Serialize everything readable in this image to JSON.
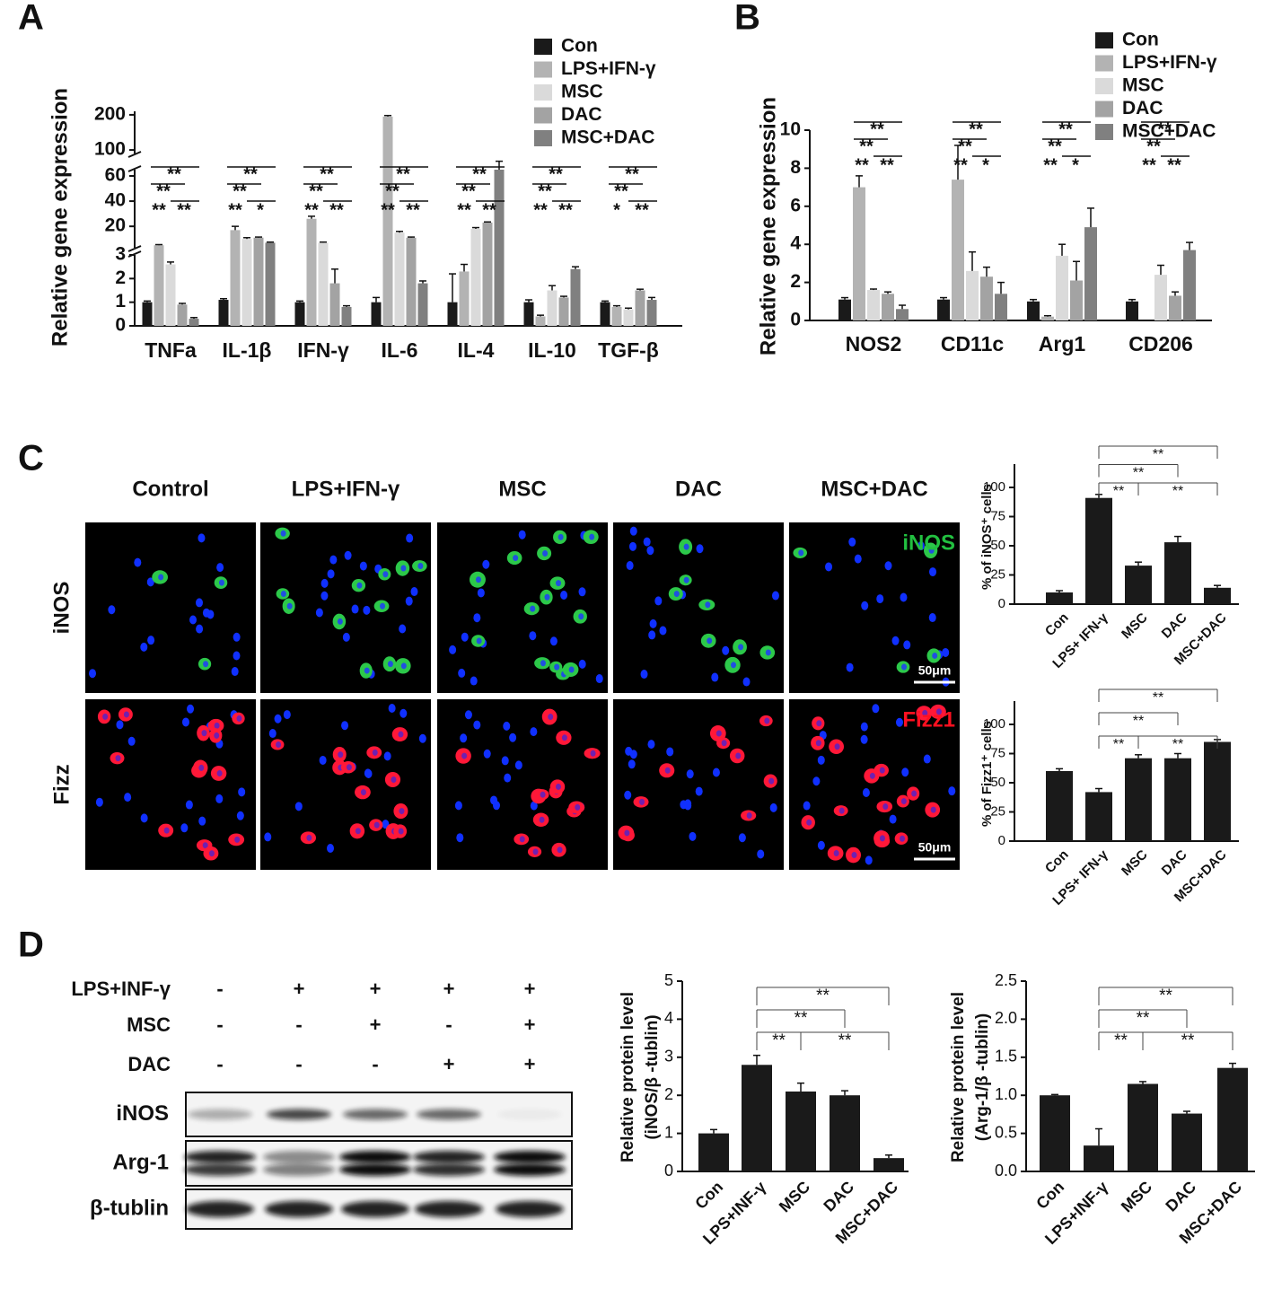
{
  "panel_labels": [
    "A",
    "B",
    "C",
    "D"
  ],
  "chart_data": [
    {
      "type": "bar",
      "y_label": "Relative gene expression",
      "categories": [
        "TNFa",
        "IL-1β",
        "IFN-γ",
        "IL-6",
        "IL-4",
        "IL-10",
        "TGF-β"
      ],
      "series": [
        {
          "name": "Con",
          "color": "#1a1a1a",
          "values": [
            1,
            1.1,
            1,
            1,
            1,
            1,
            1
          ],
          "errors": [
            0.05,
            0.05,
            0.05,
            0.2,
            1.2,
            0.1,
            0.05
          ]
        },
        {
          "name": "LPS+IFN-γ",
          "color": "#b3b3b3",
          "values": [
            5,
            17,
            26,
            195,
            2.3,
            0.4,
            0.8
          ],
          "errors": [
            0.5,
            3,
            2,
            3,
            0.3,
            0.05,
            0.05
          ]
        },
        {
          "name": "MSC",
          "color": "#dadada",
          "values": [
            2.6,
            10,
            7,
            15,
            18,
            1.5,
            0.7
          ],
          "errors": [
            0.1,
            1,
            0.5,
            1,
            1,
            0.2,
            0.05
          ]
        },
        {
          "name": "DAC",
          "color": "#a3a3a3",
          "values": [
            0.9,
            11,
            1.8,
            11,
            23,
            1.2,
            1.5
          ],
          "errors": [
            0.05,
            0.5,
            0.6,
            0.5,
            0.5,
            0.05,
            0.05
          ]
        },
        {
          "name": "MSC+DAC",
          "color": "#808080",
          "values": [
            0.3,
            7,
            0.8,
            1.8,
            65,
            2.4,
            1.1
          ],
          "errors": [
            0.05,
            0.5,
            0.05,
            0.1,
            3,
            0.1,
            0.1
          ]
        }
      ],
      "ylim": [
        0,
        210
      ],
      "y_segments": [
        [
          0,
          3
        ],
        [
          3,
          65
        ],
        [
          90,
          210
        ]
      ],
      "yticks": [
        0,
        1,
        2,
        3,
        20,
        40,
        60,
        100,
        200
      ],
      "significance": [
        [
          "**",
          "**",
          "**",
          "**"
        ],
        [
          "**",
          "**",
          "**",
          "*"
        ],
        [
          "**",
          "**",
          "**",
          "**"
        ],
        [
          "**",
          "**",
          "**",
          "**"
        ],
        [
          "**",
          "**",
          "**",
          "**"
        ],
        [
          "**",
          "**",
          "**",
          "**"
        ],
        [
          "**",
          "**",
          "*",
          "**"
        ]
      ]
    },
    {
      "type": "bar",
      "y_label": "Relative gene expression",
      "categories": [
        "NOS2",
        "CD11c",
        "Arg1",
        "CD206"
      ],
      "series": [
        {
          "name": "Con",
          "color": "#1a1a1a",
          "values": [
            1.1,
            1.1,
            1,
            1
          ],
          "errors": [
            0.1,
            0.1,
            0.1,
            0.1
          ]
        },
        {
          "name": "LPS+IFN-γ",
          "color": "#b3b3b3",
          "values": [
            7,
            7.4,
            0.2,
            0
          ],
          "errors": [
            0.6,
            1.8,
            0.05,
            0
          ]
        },
        {
          "name": "MSC",
          "color": "#dadada",
          "values": [
            1.6,
            2.6,
            3.4,
            2.4
          ],
          "errors": [
            0.05,
            1,
            0.6,
            0.5
          ]
        },
        {
          "name": "DAC",
          "color": "#a3a3a3",
          "values": [
            1.4,
            2.3,
            2.1,
            1.3
          ],
          "errors": [
            0.1,
            0.5,
            1,
            0.2
          ]
        },
        {
          "name": "MSC+DAC",
          "color": "#808080",
          "values": [
            0.6,
            1.4,
            4.9,
            3.7
          ],
          "errors": [
            0.2,
            0.6,
            1,
            0.4
          ]
        }
      ],
      "ylim": [
        0,
        10
      ],
      "yticks": [
        0,
        2,
        4,
        6,
        8,
        10
      ],
      "significance": [
        [
          "**",
          "**",
          "**",
          "**"
        ],
        [
          "**",
          "**",
          "**",
          "*"
        ],
        [
          "**",
          "**",
          "**",
          "*"
        ],
        [
          "**",
          "**",
          "**",
          "**"
        ]
      ]
    },
    {
      "type": "bar",
      "y_label": "% of iNOS⁺ cells",
      "categories": [
        "Con",
        "LPS+ IFN-γ",
        "MSC",
        "DAC",
        "MSC+DAC"
      ],
      "values": [
        10,
        91,
        33,
        53,
        14
      ],
      "errors": [
        1.5,
        3,
        3,
        5,
        2
      ],
      "color": "#1a1a1a",
      "ylim": [
        0,
        120
      ],
      "yticks": [
        0,
        25,
        50,
        75,
        100
      ],
      "brackets": [
        {
          "from": 1,
          "to": 4,
          "label": "**"
        },
        {
          "from": 1,
          "to": 3,
          "label": "**"
        },
        {
          "from": 1,
          "to": 2,
          "label": "**"
        },
        {
          "from": 2,
          "to": 4,
          "label": "**"
        }
      ]
    },
    {
      "type": "bar",
      "y_label": "% of Fizz1⁺ cells",
      "categories": [
        "Con",
        "LPS+ IFN-γ",
        "MSC",
        "DAC",
        "MSC+DAC"
      ],
      "values": [
        60,
        42,
        71,
        71,
        85
      ],
      "errors": [
        2,
        3,
        3,
        4,
        2
      ],
      "color": "#1a1a1a",
      "ylim": [
        0,
        120
      ],
      "yticks": [
        0,
        25,
        50,
        75,
        100
      ],
      "brackets": [
        {
          "from": 1,
          "to": 4,
          "label": "**"
        },
        {
          "from": 1,
          "to": 3,
          "label": "**"
        },
        {
          "from": 1,
          "to": 2,
          "label": "**"
        },
        {
          "from": 2,
          "to": 4,
          "label": "**"
        }
      ]
    },
    {
      "type": "bar",
      "y_label": [
        "Relative protein level",
        "(iNOS/β -tublin)"
      ],
      "categories": [
        "Con",
        "LPS+INF-γ",
        "MSC",
        "DAC",
        "MSC+DAC"
      ],
      "values": [
        1,
        2.8,
        2.1,
        2,
        0.35
      ],
      "errors": [
        0.1,
        0.25,
        0.22,
        0.12,
        0.08
      ],
      "color": "#1a1a1a",
      "ylim": [
        0,
        5
      ],
      "yticks": [
        0,
        1,
        2,
        3,
        4,
        5
      ],
      "brackets": [
        {
          "from": 1,
          "to": 4,
          "label": "**"
        },
        {
          "from": 1,
          "to": 3,
          "label": "**"
        },
        {
          "from": 1,
          "to": 2,
          "label": "**"
        },
        {
          "from": 2,
          "to": 4,
          "label": "**"
        }
      ]
    },
    {
      "type": "bar",
      "y_label": [
        "Relative protein level",
        "(Arg-1/β -tublin)"
      ],
      "categories": [
        "Con",
        "LPS+INF-γ",
        "MSC",
        "DAC",
        "MSC+DAC"
      ],
      "values": [
        1,
        0.34,
        1.15,
        0.76,
        1.36
      ],
      "errors": [
        0.01,
        0.22,
        0.03,
        0.03,
        0.06
      ],
      "color": "#1a1a1a",
      "ylim": [
        0,
        2.5
      ],
      "yticks": [
        {
          "value": 0,
          "label": "0.0"
        },
        0.5,
        {
          "value": 1,
          "label": "1.0"
        },
        1.5,
        {
          "value": 2,
          "label": "2.0"
        },
        2.5
      ],
      "brackets": [
        {
          "from": 1,
          "to": 4,
          "label": "**"
        },
        {
          "from": 1,
          "to": 3,
          "label": "**"
        },
        {
          "from": 1,
          "to": 2,
          "label": "**"
        },
        {
          "from": 2,
          "to": 4,
          "label": "**"
        }
      ]
    }
  ],
  "microscopy": {
    "columns": [
      "Control",
      "LPS+IFN-γ",
      "MSC",
      "DAC",
      "MSC+DAC"
    ],
    "rows": [
      "iNOS",
      "Fizz"
    ],
    "stains": [
      "iNOS",
      "Fizz1"
    ],
    "scale_bar": "50μm"
  },
  "western_blot": {
    "conditions": [
      {
        "label": "LPS+INF-γ",
        "signs": [
          "-",
          "+",
          "+",
          "+",
          "+"
        ]
      },
      {
        "label": "MSC",
        "signs": [
          "-",
          "-",
          "+",
          "-",
          "+"
        ]
      },
      {
        "label": "DAC",
        "signs": [
          "-",
          "-",
          "-",
          "+",
          "+"
        ]
      }
    ],
    "bands": [
      "iNOS",
      "Arg-1",
      "β-tublin"
    ]
  }
}
